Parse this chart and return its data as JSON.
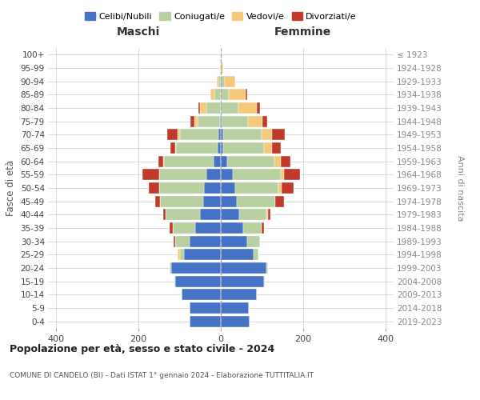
{
  "age_groups": [
    "0-4",
    "5-9",
    "10-14",
    "15-19",
    "20-24",
    "25-29",
    "30-34",
    "35-39",
    "40-44",
    "45-49",
    "50-54",
    "55-59",
    "60-64",
    "65-69",
    "70-74",
    "75-79",
    "80-84",
    "85-89",
    "90-94",
    "95-99",
    "100+"
  ],
  "birth_years": [
    "2019-2023",
    "2014-2018",
    "2009-2013",
    "2004-2008",
    "1999-2003",
    "1994-1998",
    "1989-1993",
    "1984-1988",
    "1979-1983",
    "1974-1978",
    "1969-1973",
    "1964-1968",
    "1959-1963",
    "1954-1958",
    "1949-1953",
    "1944-1948",
    "1939-1943",
    "1934-1938",
    "1929-1933",
    "1924-1928",
    "≤ 1923"
  ],
  "colors": {
    "celibi": "#4472c4",
    "coniugati": "#b8cfa0",
    "vedovi": "#f5c97a",
    "divorziati": "#c0392b"
  },
  "males": {
    "celibi": [
      75,
      75,
      95,
      110,
      120,
      90,
      75,
      62,
      50,
      42,
      40,
      35,
      18,
      8,
      5,
      2,
      0,
      0,
      0,
      0,
      0
    ],
    "coniugati": [
      0,
      0,
      0,
      2,
      5,
      10,
      35,
      55,
      85,
      105,
      110,
      115,
      120,
      100,
      95,
      55,
      35,
      15,
      5,
      0,
      0
    ],
    "vedovi": [
      0,
      0,
      0,
      0,
      0,
      5,
      0,
      0,
      0,
      0,
      0,
      0,
      2,
      2,
      5,
      8,
      15,
      10,
      5,
      1,
      0
    ],
    "divorziati": [
      0,
      0,
      0,
      0,
      0,
      0,
      5,
      8,
      5,
      12,
      25,
      40,
      12,
      12,
      25,
      8,
      5,
      0,
      0,
      0,
      0
    ]
  },
  "females": {
    "celibi": [
      70,
      68,
      88,
      105,
      110,
      80,
      65,
      55,
      45,
      38,
      35,
      30,
      15,
      5,
      5,
      2,
      0,
      0,
      0,
      0,
      0
    ],
    "coniugati": [
      0,
      0,
      0,
      2,
      5,
      12,
      30,
      45,
      65,
      95,
      105,
      115,
      115,
      100,
      95,
      65,
      42,
      20,
      10,
      0,
      0
    ],
    "vedovi": [
      0,
      0,
      0,
      0,
      0,
      0,
      0,
      0,
      5,
      0,
      8,
      8,
      15,
      20,
      25,
      35,
      45,
      40,
      25,
      5,
      2
    ],
    "divorziati": [
      0,
      0,
      0,
      0,
      0,
      0,
      0,
      5,
      5,
      20,
      28,
      40,
      25,
      20,
      30,
      10,
      8,
      5,
      0,
      0,
      0
    ]
  },
  "xlim": 420,
  "title": "Popolazione per età, sesso e stato civile - 2024",
  "subtitle": "COMUNE DI CANDELO (BI) - Dati ISTAT 1° gennaio 2024 - Elaborazione TUTTITALIA.IT",
  "xlabel_left": "Maschi",
  "xlabel_right": "Femmine",
  "ylabel": "Fasce di età",
  "ylabel_right": "Anni di nascita",
  "legend_labels": [
    "Celibi/Nubili",
    "Coniugati/e",
    "Vedovi/e",
    "Divorziati/e"
  ],
  "background_color": "#ffffff",
  "bar_height": 0.85
}
